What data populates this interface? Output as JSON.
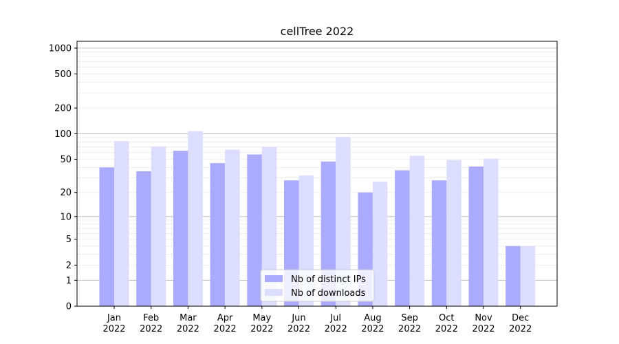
{
  "chart_data": {
    "type": "bar",
    "title": "cellTree 2022",
    "xlabel": "",
    "ylabel": "",
    "y_scale": "symlog",
    "ylim": [
      0,
      1200
    ],
    "yticks": [
      0,
      1,
      2,
      5,
      10,
      20,
      50,
      100,
      200,
      500,
      1000
    ],
    "grid": true,
    "legend_position": "bottom-center",
    "categories": [
      [
        "Jan",
        "2022"
      ],
      [
        "Feb",
        "2022"
      ],
      [
        "Mar",
        "2022"
      ],
      [
        "Apr",
        "2022"
      ],
      [
        "May",
        "2022"
      ],
      [
        "Jun",
        "2022"
      ],
      [
        "Jul",
        "2022"
      ],
      [
        "Aug",
        "2022"
      ],
      [
        "Sep",
        "2022"
      ],
      [
        "Oct",
        "2022"
      ],
      [
        "Nov",
        "2022"
      ],
      [
        "Dec",
        "2022"
      ]
    ],
    "series": [
      {
        "name": "Nb of distinct IPs",
        "color": "#aaaaff",
        "values": [
          40,
          36,
          63,
          45,
          57,
          28,
          47,
          20,
          37,
          28,
          41,
          4
        ]
      },
      {
        "name": "Nb of downloads",
        "color": "#ddddff",
        "values": [
          82,
          71,
          107,
          65,
          70,
          32,
          92,
          27,
          55,
          49,
          51,
          4
        ]
      }
    ]
  }
}
